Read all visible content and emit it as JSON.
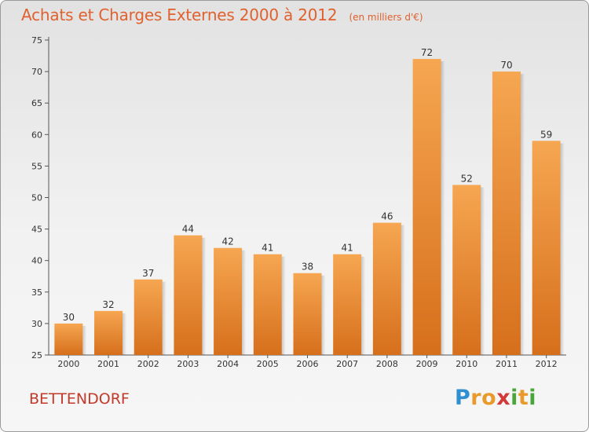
{
  "title": "Achats et Charges Externes 2000 à 2012",
  "unit": "(en milliers d'€)",
  "commune": "BETTENDORF",
  "logo": {
    "letters": [
      {
        "char": "P",
        "color": "#2f8fd0"
      },
      {
        "char": "r",
        "color": "#e89a2a"
      },
      {
        "char": "o",
        "color": "#e89a2a"
      },
      {
        "char": "x",
        "color": "#d23a3a"
      },
      {
        "char": "i",
        "color": "#4aa63a"
      },
      {
        "char": "t",
        "color": "#e89a2a"
      },
      {
        "char": "i",
        "color": "#4aa63a"
      }
    ]
  },
  "colors": {
    "bar_top": "#f6a651",
    "bar_bottom": "#d66f1c",
    "title": "#e0612e",
    "commune": "#c23a2a"
  },
  "chart_data": {
    "type": "bar",
    "categories": [
      "2000",
      "2001",
      "2002",
      "2003",
      "2004",
      "2005",
      "2006",
      "2007",
      "2008",
      "2009",
      "2010",
      "2011",
      "2012"
    ],
    "values": [
      30,
      32,
      37,
      44,
      42,
      41,
      38,
      41,
      46,
      72,
      52,
      70,
      59
    ],
    "ylim": [
      25,
      75
    ],
    "yticks": [
      25,
      30,
      35,
      40,
      45,
      50,
      55,
      60,
      65,
      70,
      75
    ],
    "grid": false,
    "title": "Achats et Charges Externes 2000 à 2012",
    "xlabel": "",
    "ylabel": ""
  }
}
